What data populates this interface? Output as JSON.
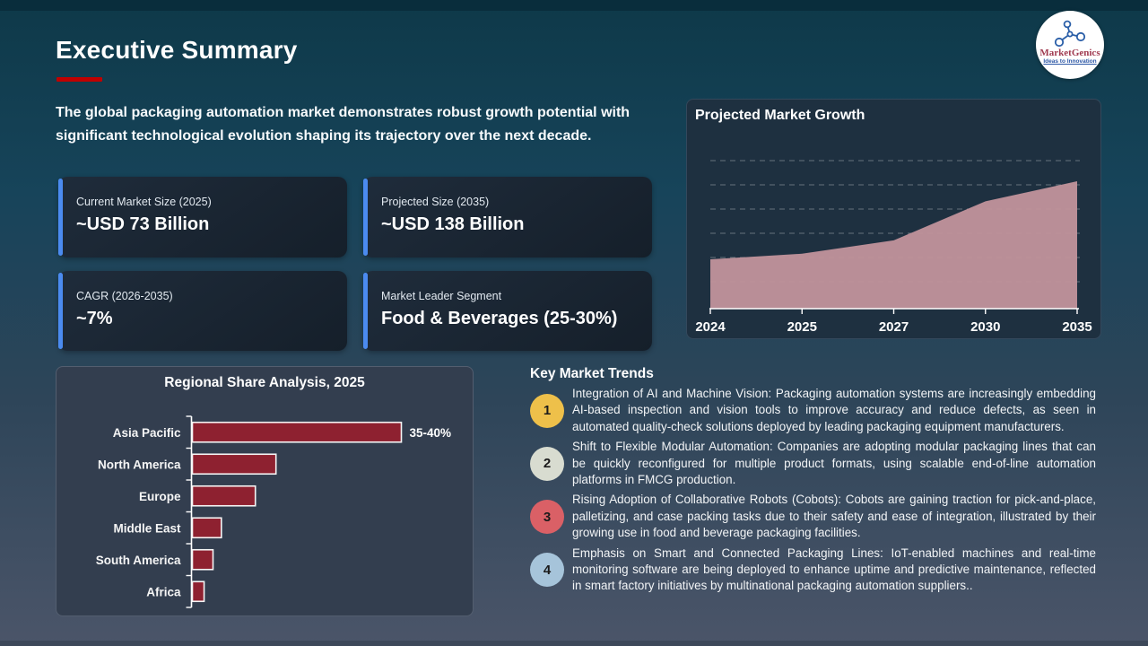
{
  "slide": {
    "title": "Executive Summary",
    "intro": "The global packaging automation market demonstrates robust growth potential with significant technological evolution shaping its trajectory over the next decade."
  },
  "logo": {
    "name": "MarketGenics",
    "tagline": "Ideas to Innovation"
  },
  "stats": [
    {
      "label": "Current Market Size (2025)",
      "value": "~USD 73 Billion"
    },
    {
      "label": "Projected Size (2035)",
      "value": "~USD 138 Billion"
    },
    {
      "label": "CAGR (2026-2035)",
      "value": "~7%"
    },
    {
      "label": "Market Leader Segment",
      "value": "Food & Beverages (25-30%)"
    }
  ],
  "trends": {
    "title": "Key Market Trends",
    "items": [
      {
        "number": "1",
        "color": "#eec04a",
        "text": "Integration of AI and Machine Vision: Packaging automation systems are increasingly embedding AI-based inspection and vision tools to improve accuracy and reduce defects, as seen in automated quality-check solutions deployed by leading packaging equipment manufacturers."
      },
      {
        "number": "2",
        "color": "#d8dcd0",
        "text": "Shift to Flexible Modular Automation: Companies are adopting modular packaging lines that can be quickly reconfigured for multiple product formats, using scalable end-of-line automation platforms in FMCG production."
      },
      {
        "number": "3",
        "color": "#da6066",
        "text": "Rising Adoption of Collaborative Robots (Cobots): Cobots are gaining traction for pick-and-place, palletizing, and case packing tasks due to their safety and ease of integration, illustrated by their growing use in food and beverage packaging facilities."
      },
      {
        "number": "4",
        "color": "#a6c4da",
        "text": "Emphasis on Smart and Connected Packaging Lines: IoT-enabled machines and real-time monitoring software are being deployed to enhance uptime and predictive maintenance, reflected in smart factory initiatives by multinational packaging automation suppliers.."
      }
    ]
  },
  "chart_data": [
    {
      "type": "area",
      "title": "Projected Market Growth",
      "x": [
        "2024",
        "2025",
        "2027",
        "2030",
        "2035"
      ],
      "series": [
        {
          "name": "Market size (USD Billion)",
          "values": [
            68,
            73,
            85,
            120,
            138
          ]
        }
      ],
      "ylabel": "",
      "xlabel": "",
      "ylim": [
        0,
        150
      ],
      "grid": "horizontal-dashed",
      "legend": "none",
      "area_color": "#c2949c"
    },
    {
      "type": "bar",
      "orientation": "horizontal",
      "title": "Regional Share Analysis, 2025",
      "categories": [
        "Asia Pacific",
        "North America",
        "Europe",
        "Middle East",
        "South America",
        "Africa"
      ],
      "values": [
        37.5,
        15,
        11.3,
        5.2,
        3.7,
        2.1
      ],
      "unit": "percent share (estimated from bar lengths)",
      "bar_color": "#8e2130",
      "bar_border_color": "#f5f5f5",
      "annotations": [
        {
          "category": "Asia Pacific",
          "label": "35-40%"
        }
      ]
    }
  ]
}
